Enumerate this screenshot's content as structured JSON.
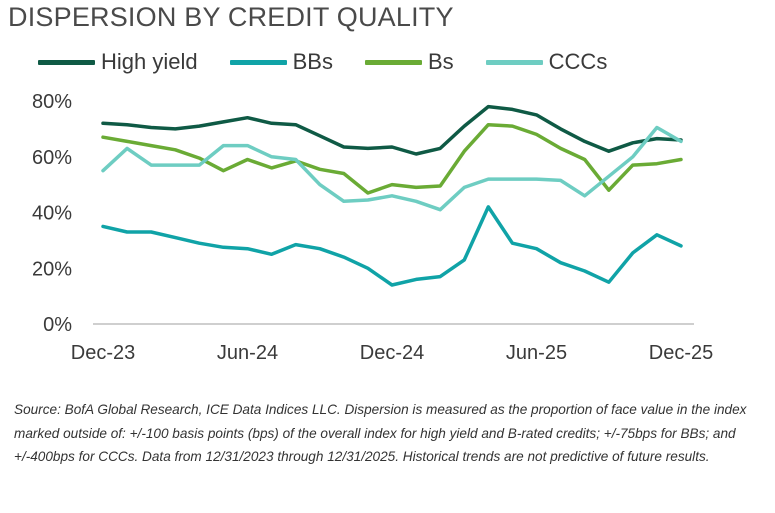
{
  "chart_data": {
    "type": "line",
    "title": "DISPERSION BY CREDIT QUALITY",
    "xlabel": "",
    "ylabel": "",
    "x_ticks": [
      "Dec-23",
      "Jun-24",
      "Dec-24",
      "Jun-25",
      "Dec-25"
    ],
    "y_ticks": [
      "0%",
      "20%",
      "40%",
      "60%",
      "80%"
    ],
    "ylim": [
      0,
      80
    ],
    "grid": false,
    "legend": "top",
    "x": [
      "Dec-23",
      "Jan-24",
      "Feb-24",
      "Mar-24",
      "Apr-24",
      "May-24",
      "Jun-24",
      "Jul-24",
      "Aug-24",
      "Sep-24",
      "Oct-24",
      "Nov-24",
      "Dec-24",
      "Jan-25",
      "Feb-25",
      "Mar-25",
      "Apr-25",
      "May-25",
      "Jun-25",
      "Jul-25",
      "Aug-25",
      "Sep-25",
      "Oct-25",
      "Nov-25",
      "Dec-25"
    ],
    "series": [
      {
        "name": "High yield",
        "color": "#0f5a45",
        "values": [
          72,
          71.5,
          70.5,
          70,
          71,
          72.5,
          74,
          72,
          71.5,
          67.5,
          63.5,
          63,
          63.5,
          61,
          63,
          71,
          78,
          77,
          75,
          70,
          65.5,
          62,
          65,
          66.5,
          66
        ]
      },
      {
        "name": "BBs",
        "color": "#10a3a7",
        "values": [
          35,
          33,
          33,
          31,
          29,
          27.5,
          27,
          25,
          28.5,
          27,
          24,
          20,
          14,
          16,
          17,
          23,
          42,
          29,
          27,
          22,
          19,
          15,
          25.5,
          32,
          28
        ]
      },
      {
        "name": "Bs",
        "color": "#6aab35",
        "values": [
          67,
          65.5,
          64,
          62.5,
          59.5,
          55,
          59,
          56,
          58.5,
          55.5,
          54,
          47,
          50,
          49,
          49.5,
          62,
          71.5,
          71,
          68,
          63,
          59,
          48,
          57,
          57.5,
          59
        ]
      },
      {
        "name": "CCCs",
        "color": "#6ecdc2",
        "values": [
          55,
          63,
          57,
          57,
          57,
          64,
          64,
          60,
          59,
          50,
          44,
          44.5,
          46,
          44,
          41,
          49,
          52,
          52,
          52,
          51.5,
          46,
          53,
          60,
          70.5,
          65.5
        ]
      }
    ]
  },
  "source_note": "Source: BofA Global Research, ICE Data Indices LLC. Dispersion is measured as the proportion of face value in the index marked outside of: +/-100 basis points (bps) of the overall index for high yield and B-rated credits; +/-75bps for BBs; and +/-400bps for CCCs. Data from 12/31/2023 through 12/31/2025. Historical trends are not predictive of future results."
}
